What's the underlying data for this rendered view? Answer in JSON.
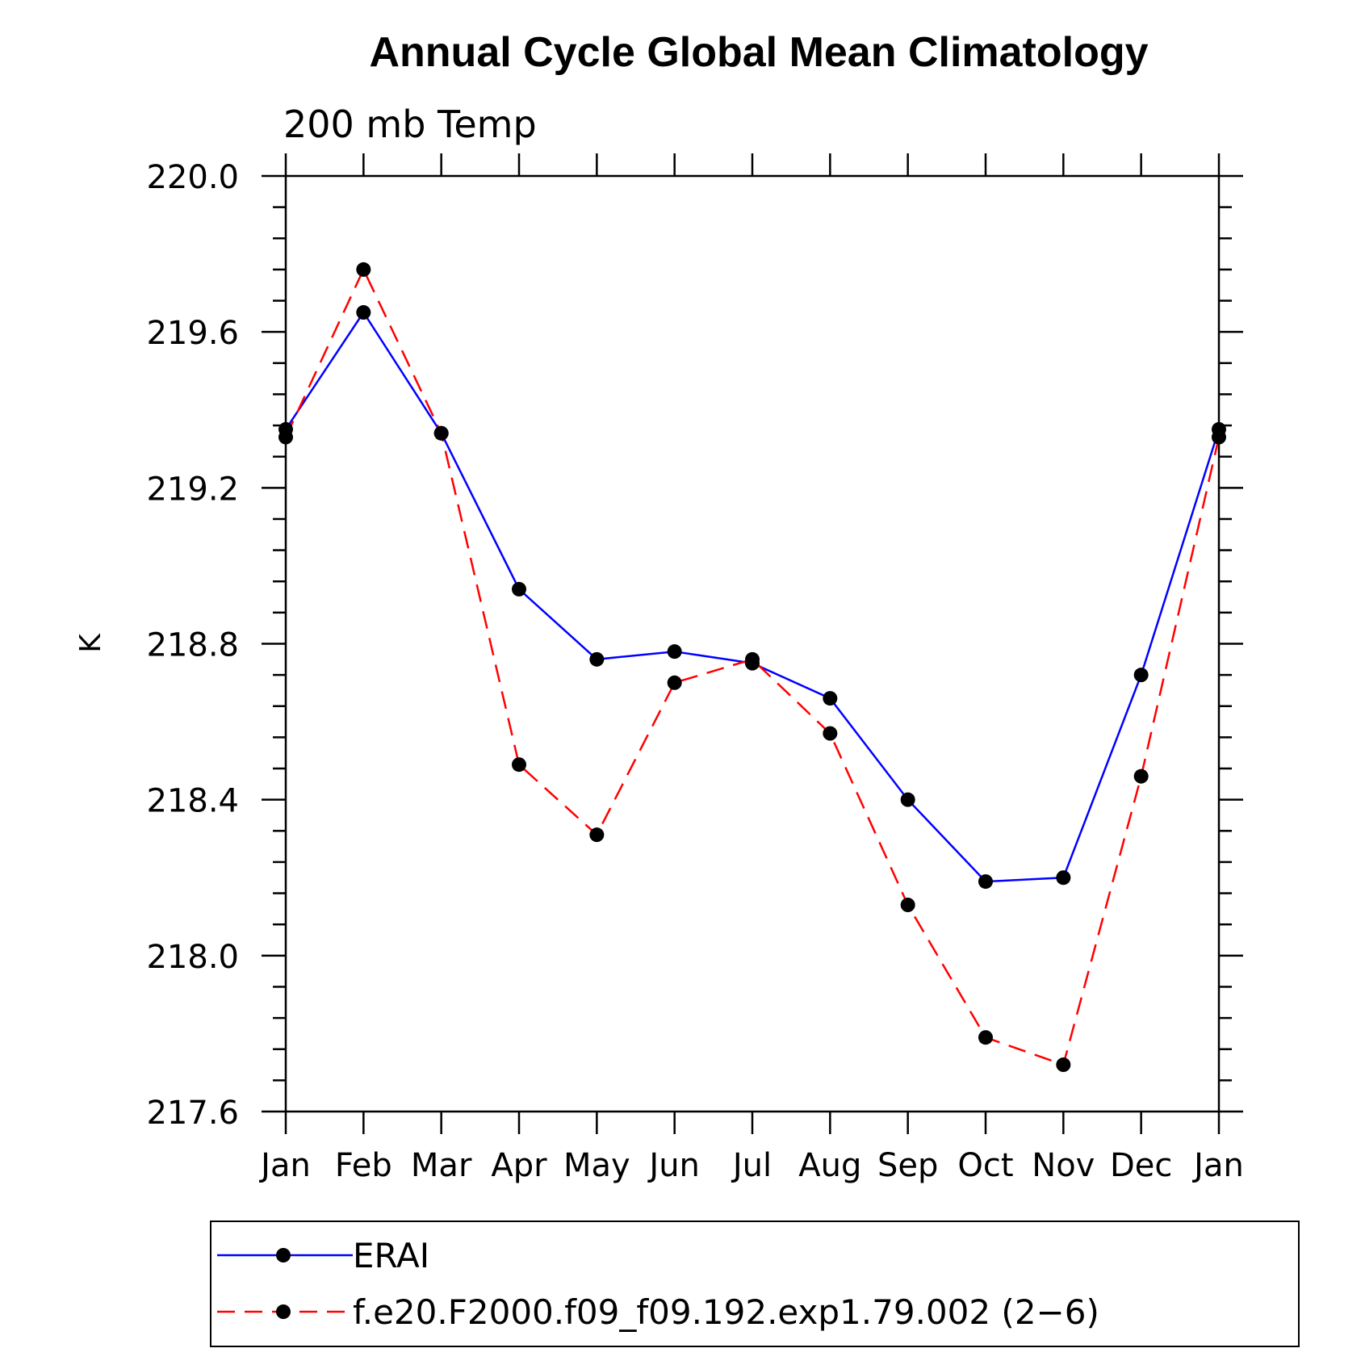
{
  "chart_data": {
    "type": "line",
    "title": "Annual Cycle Global Mean Climatology",
    "subtitle": "200 mb Temp",
    "xlabel": "",
    "ylabel": "K",
    "categories": [
      "Jan",
      "Feb",
      "Mar",
      "Apr",
      "May",
      "Jun",
      "Jul",
      "Aug",
      "Sep",
      "Oct",
      "Nov",
      "Dec",
      "Jan"
    ],
    "ylim": [
      217.6,
      220.0
    ],
    "yticks": [
      217.6,
      218.0,
      218.4,
      218.8,
      219.2,
      219.6,
      220.0
    ],
    "ytick_labels": [
      "217.6",
      "218.0",
      "218.4",
      "218.8",
      "219.2",
      "219.6",
      "220.0"
    ],
    "series": [
      {
        "name": "ERAI",
        "color": "#0000ff",
        "dash": "solid",
        "values": [
          219.35,
          219.65,
          219.34,
          218.94,
          218.76,
          218.78,
          218.75,
          218.66,
          218.4,
          218.19,
          218.2,
          218.72,
          219.35
        ]
      },
      {
        "name": "f.e20.F2000.f09_f09.192.exp1.79.002 (2−6)",
        "color": "#ff0000",
        "dash": "dashed",
        "values": [
          219.33,
          219.76,
          219.34,
          218.49,
          218.31,
          218.7,
          218.76,
          218.57,
          218.13,
          217.79,
          217.72,
          218.46,
          219.33
        ]
      }
    ],
    "legend_position": "bottom"
  }
}
